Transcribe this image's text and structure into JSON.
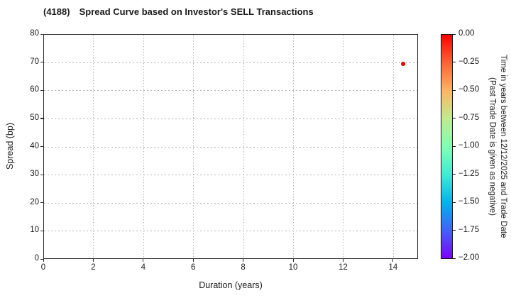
{
  "header": {
    "ticker": "(4188)",
    "title": "Spread Curve based on Investor's SELL Transactions"
  },
  "chart_data": {
    "type": "scatter",
    "title": "(4188)  Spread Curve based on Investor's SELL Transactions",
    "xlabel": "Duration (years)",
    "ylabel": "Spread (bp)",
    "xlim": [
      0,
      15
    ],
    "ylim": [
      0,
      80
    ],
    "xticks": [
      0,
      2,
      4,
      6,
      8,
      10,
      12,
      14
    ],
    "yticks": [
      0,
      10,
      20,
      30,
      40,
      50,
      60,
      70,
      80
    ],
    "grid": true,
    "grid_style": "dotted",
    "points": [
      {
        "x": 14.4,
        "y": 69.3,
        "color_value": 0.0,
        "color": "#ff0000"
      }
    ],
    "colorbar": {
      "title_line1": "Time in years between 12/12/2025 and Trade Date",
      "title_line2": "(Past Trade Date is given as negative)",
      "tick_labels": [
        "0.00",
        "−0.25",
        "−0.50",
        "−0.75",
        "−1.00",
        "−1.25",
        "−1.50",
        "−1.75",
        "−2.00"
      ],
      "vmax": 0.0,
      "vmin": -2.0,
      "gradient_stops": [
        "#ff0000",
        "#ff6232",
        "#ffb462",
        "#bfec8e",
        "#80ffb4",
        "#40ecd4",
        "#00b4ec",
        "#4062fa",
        "#8000ff"
      ]
    }
  }
}
